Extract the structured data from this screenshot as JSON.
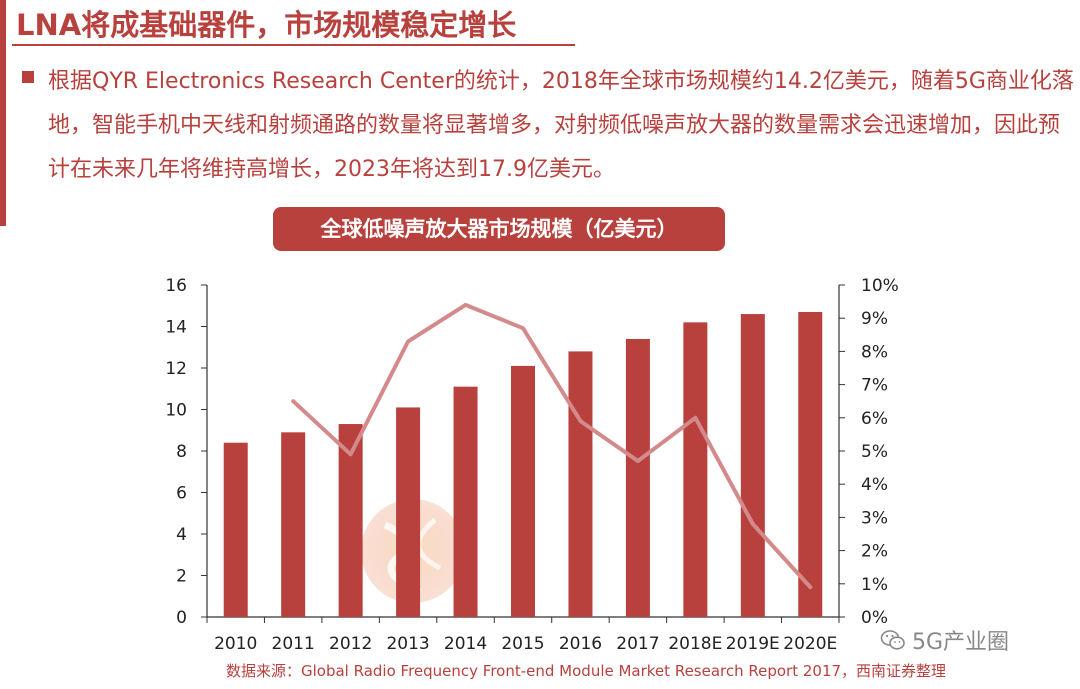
{
  "slide": {
    "title": "LNA将成基础器件，市场规模稳定增长",
    "bullet_text": "根据QYR Electronics Research Center的统计，2018年全球市场规模约14.2亿美元，随着5G商业化落地，智能手机中天线和射频通路的数量将显著增多，对射频低噪声放大器的数量需求会迅速增加，因此预计在未来几年将维持高增长，2023年将达到17.9亿美元。",
    "source": "数据来源：Global Radio Frequency Front-end Module Market Research Report 2017，西南证券整理",
    "brand": "5G产业圈",
    "accent_color": "#b8413d"
  },
  "chart_data": {
    "type": "bar",
    "title": "全球低噪声放大器市场规模（亿美元）",
    "categories": [
      "2010",
      "2011",
      "2012",
      "2013",
      "2014",
      "2015",
      "2016",
      "2017",
      "2018E",
      "2019E",
      "2020E"
    ],
    "series": [
      {
        "type": "bar",
        "axis": "left",
        "values": [
          8.4,
          8.9,
          9.3,
          10.1,
          11.1,
          12.1,
          12.8,
          13.4,
          14.2,
          14.6,
          14.7
        ],
        "color": "#b8413d"
      },
      {
        "type": "line",
        "axis": "right",
        "values": [
          null,
          6.5,
          4.9,
          8.3,
          9.4,
          8.7,
          5.9,
          4.7,
          6.0,
          2.8,
          0.9
        ],
        "color": "#d48a8a"
      }
    ],
    "ylim_left": [
      0,
      16
    ],
    "yticks_left": [
      0,
      2,
      4,
      6,
      8,
      10,
      12,
      14,
      16
    ],
    "ylim_right": [
      0,
      10
    ],
    "yticks_right": [
      "0%",
      "1%",
      "2%",
      "3%",
      "4%",
      "5%",
      "6%",
      "7%",
      "8%",
      "9%",
      "10%"
    ],
    "grid": false
  }
}
